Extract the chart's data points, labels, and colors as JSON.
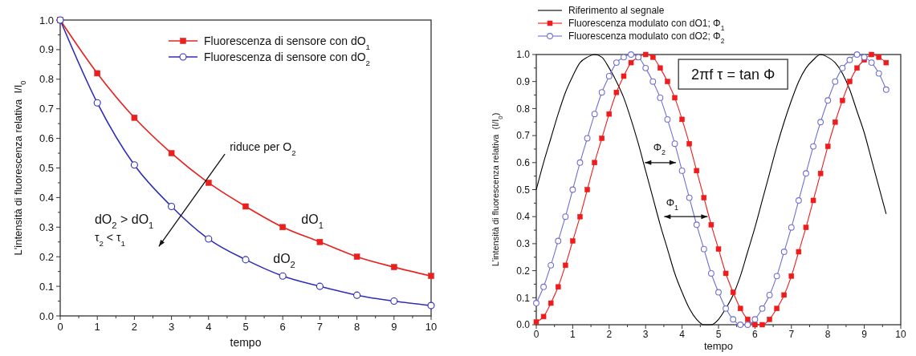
{
  "chart_data": [
    {
      "type": "line",
      "xlabel": "tempo",
      "ylabel": "L'intensità di fluorescenza relativa  I/I$_{0}$",
      "x": [
        0,
        1,
        2,
        3,
        4,
        5,
        6,
        7,
        8,
        9,
        10
      ],
      "xlim": [
        0,
        10
      ],
      "ylim": [
        0,
        1
      ],
      "xticks": [
        0,
        {
          "value": 0.5,
          "label": null
        },
        1,
        {
          "value": 1.5,
          "label": null
        },
        2,
        {
          "value": 2.5,
          "label": null
        },
        3,
        {
          "value": 3.5,
          "label": null
        },
        4,
        {
          "value": 4.5,
          "label": null
        },
        5,
        {
          "value": 5.5,
          "label": null
        },
        6,
        {
          "value": 6.5,
          "label": null
        },
        7,
        {
          "value": 7.5,
          "label": null
        },
        8,
        {
          "value": 8.5,
          "label": null
        },
        9,
        {
          "value": 9.5,
          "label": null
        },
        10
      ],
      "yticks": [
        {
          "value": 0,
          "label": "0.0"
        },
        {
          "value": 0.05,
          "label": null
        },
        0.1,
        {
          "value": 0.15,
          "label": null
        },
        0.2,
        {
          "value": 0.25,
          "label": null
        },
        0.3,
        {
          "value": 0.35,
          "label": null
        },
        0.4,
        {
          "value": 0.45,
          "label": null
        },
        0.5,
        {
          "value": 0.55,
          "label": null
        },
        0.6,
        {
          "value": 0.65,
          "label": null
        },
        0.7,
        {
          "value": 0.75,
          "label": null
        },
        0.8,
        {
          "value": 0.85,
          "label": null
        },
        0.9,
        {
          "value": 0.95,
          "label": null
        },
        {
          "value": 1,
          "label": "1.0"
        }
      ],
      "legend": "top right",
      "series": [
        {
          "name": "Fluorescenza di sensore con dO$_{1}$",
          "color": "#e8201e",
          "marker": "square",
          "values": [
            1,
            0.82,
            0.67,
            0.55,
            0.45,
            0.37,
            0.3,
            0.25,
            0.2,
            0.165,
            0.135
          ]
        },
        {
          "name": "Fluorescenza di sensore con dO$_{2}$",
          "color": "#2e2eb8",
          "marker": "circle",
          "values": [
            1,
            0.72,
            0.51,
            0.37,
            0.26,
            0.19,
            0.135,
            0.1,
            0.07,
            0.05,
            0.035
          ]
        }
      ],
      "annotations": [
        "riduce per O$_{2}$",
        "dO$_{2}$ > dO$_{1}$",
        "τ$_{2}$ < τ$_{1}$",
        "dO$_{1}$",
        "dO$_{2}$"
      ]
    },
    {
      "type": "line",
      "xlabel": "tempo",
      "ylabel": "L'intensità di fluorescenza relativa  (I/I$_{0}$)",
      "x": [
        0,
        0.2,
        0.4,
        0.6,
        0.8,
        1,
        1.2,
        1.4,
        1.6,
        1.8,
        2,
        2.2,
        2.4,
        2.6,
        2.8,
        3,
        3.2,
        3.4,
        3.6,
        3.8,
        4,
        4.2,
        4.4,
        4.6,
        4.8,
        5,
        5.2,
        5.4,
        5.6,
        5.8,
        6,
        6.2,
        6.4,
        6.6,
        6.8,
        7,
        7.2,
        7.4,
        7.6,
        7.8,
        8,
        8.2,
        8.4,
        8.6,
        8.8,
        9,
        9.2,
        9.4,
        9.6
      ],
      "xlim": [
        0,
        10
      ],
      "ylim": [
        0,
        1
      ],
      "xticks": [
        0,
        {
          "value": 0.5,
          "label": null
        },
        1,
        {
          "value": 1.5,
          "label": null
        },
        2,
        {
          "value": 2.5,
          "label": null
        },
        3,
        {
          "value": 3.5,
          "label": null
        },
        4,
        {
          "value": 4.5,
          "label": null
        },
        5,
        {
          "value": 5.5,
          "label": null
        },
        6,
        {
          "value": 6.5,
          "label": null
        },
        7,
        {
          "value": 7.5,
          "label": null
        },
        8,
        {
          "value": 8.5,
          "label": null
        },
        9,
        {
          "value": 9.5,
          "label": null
        },
        10
      ],
      "yticks": [
        {
          "value": 0,
          "label": "0.0"
        },
        {
          "value": 0.05,
          "label": null
        },
        0.1,
        {
          "value": 0.15,
          "label": null
        },
        0.2,
        {
          "value": 0.25,
          "label": null
        },
        0.3,
        {
          "value": 0.35,
          "label": null
        },
        0.4,
        {
          "value": 0.45,
          "label": null
        },
        0.5,
        {
          "value": 0.55,
          "label": null
        },
        0.6,
        {
          "value": 0.65,
          "label": null
        },
        0.7,
        {
          "value": 0.75,
          "label": null
        },
        0.8,
        {
          "value": 0.85,
          "label": null
        },
        0.9,
        {
          "value": 0.95,
          "label": null
        },
        {
          "value": 1,
          "label": "1.0"
        }
      ],
      "legend": "top left",
      "series": [
        {
          "name": "Riferimento al segnale",
          "color": "#000000",
          "marker": "none",
          "values": [
            0.5,
            0.6,
            0.69,
            0.78,
            0.86,
            0.92,
            0.97,
            0.99,
            1.0,
            0.99,
            0.95,
            0.9,
            0.84,
            0.76,
            0.67,
            0.57,
            0.47,
            0.37,
            0.28,
            0.19,
            0.12,
            0.06,
            0.02,
            0.0,
            0.0,
            0.02,
            0.06,
            0.11,
            0.18,
            0.27,
            0.36,
            0.46,
            0.56,
            0.66,
            0.75,
            0.83,
            0.9,
            0.95,
            0.98,
            1.0,
            0.99,
            0.97,
            0.93,
            0.87,
            0.79,
            0.71,
            0.61,
            0.51,
            0.41
          ]
        },
        {
          "name": "Fluorescenza modulato con dO1; Φ$_{1}$",
          "color": "#ee1c1c",
          "marker": "square",
          "values": [
            0.01,
            0.03,
            0.08,
            0.14,
            0.22,
            0.31,
            0.4,
            0.5,
            0.6,
            0.69,
            0.78,
            0.86,
            0.92,
            0.97,
            0.99,
            1.0,
            0.99,
            0.95,
            0.9,
            0.84,
            0.76,
            0.67,
            0.57,
            0.47,
            0.37,
            0.28,
            0.19,
            0.12,
            0.06,
            0.02,
            0.0,
            0.0,
            0.02,
            0.06,
            0.11,
            0.18,
            0.27,
            0.36,
            0.46,
            0.56,
            0.66,
            0.75,
            0.83,
            0.9,
            0.95,
            0.98,
            1.0,
            0.99,
            0.97
          ]
        },
        {
          "name": "Fluorescenza modulato con dO2; Φ$_{2}$",
          "color": "#7070d0",
          "marker": "circle",
          "values": [
            0.08,
            0.14,
            0.22,
            0.31,
            0.4,
            0.5,
            0.6,
            0.69,
            0.78,
            0.86,
            0.92,
            0.97,
            0.99,
            1.0,
            0.99,
            0.95,
            0.9,
            0.84,
            0.76,
            0.67,
            0.57,
            0.47,
            0.37,
            0.28,
            0.19,
            0.12,
            0.06,
            0.02,
            0.0,
            0.0,
            0.02,
            0.06,
            0.11,
            0.18,
            0.27,
            0.36,
            0.46,
            0.56,
            0.66,
            0.75,
            0.83,
            0.9,
            0.95,
            0.98,
            1.0,
            0.99,
            0.97,
            0.93,
            0.87
          ]
        }
      ],
      "annotations": [
        "2πf τ = tan Φ",
        "Φ$_{2}$",
        {
          "text": "Φ$_{1}$",
          "x": 4.7,
          "y": 0.4
        }
      ]
    }
  ]
}
